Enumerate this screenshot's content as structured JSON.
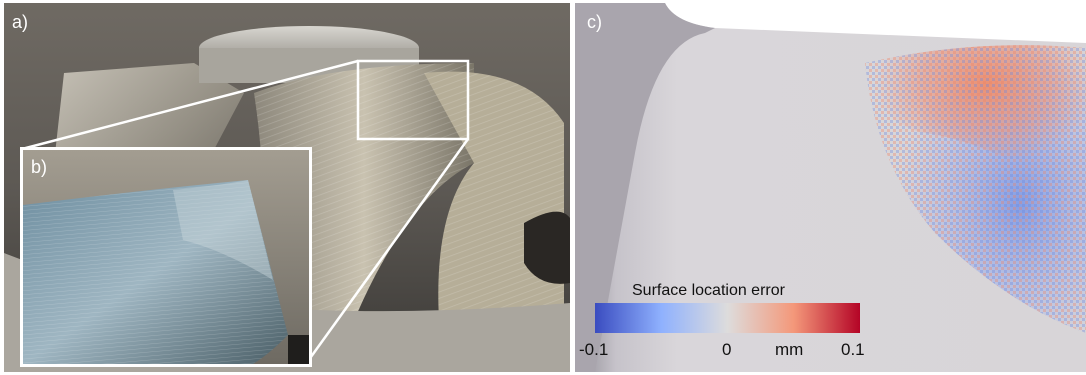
{
  "panels": {
    "a": {
      "label": "a)"
    },
    "b": {
      "label": "b)"
    },
    "c": {
      "label": "c)"
    }
  },
  "colorbar": {
    "title": "Surface location error",
    "min_label": "-0.1",
    "mid_label": "0",
    "unit": "mm",
    "max_label": "0.1",
    "color_low": "#3a4cc0",
    "color_mid": "#dddcdc",
    "color_high": "#b40426"
  }
}
